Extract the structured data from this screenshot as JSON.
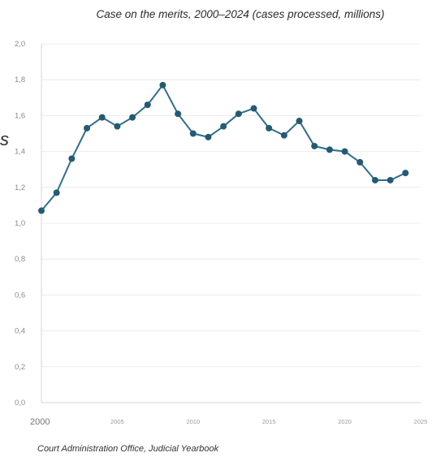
{
  "chart_data": {
    "type": "line",
    "title": "Case on the merits, 2000–2024 (cases processed, millions)",
    "ylabel_fragment": "s",
    "source": "Court Administration Office, Judicial Yearbook",
    "x": [
      2000,
      2001,
      2002,
      2003,
      2004,
      2005,
      2006,
      2007,
      2008,
      2009,
      2010,
      2011,
      2012,
      2013,
      2014,
      2015,
      2016,
      2017,
      2018,
      2019,
      2020,
      2021,
      2022,
      2023,
      2024
    ],
    "series": [
      {
        "values": [
          1.07,
          1.17,
          1.36,
          1.53,
          1.59,
          1.54,
          1.59,
          1.66,
          1.77,
          1.61,
          1.5,
          1.48,
          1.54,
          1.61,
          1.64,
          1.53,
          1.49,
          1.57,
          1.43,
          1.41,
          1.4,
          1.34,
          1.24,
          1.24,
          1.28
        ]
      }
    ],
    "xlim": [
      2000,
      2025
    ],
    "ylim": [
      0,
      2.0
    ],
    "xticks": [
      "2000",
      "2005",
      "2010",
      "2015",
      "2020",
      "2025"
    ],
    "yticks": [
      "0,0",
      "0,2",
      "0,4",
      "0,6",
      "0,8",
      "1,0",
      "1,2",
      "1,4",
      "1,6",
      "1,8",
      "2,0"
    ],
    "grid": true,
    "legend": "none",
    "colors": {
      "line": "#2e6e8a",
      "marker": "#255a73"
    }
  }
}
